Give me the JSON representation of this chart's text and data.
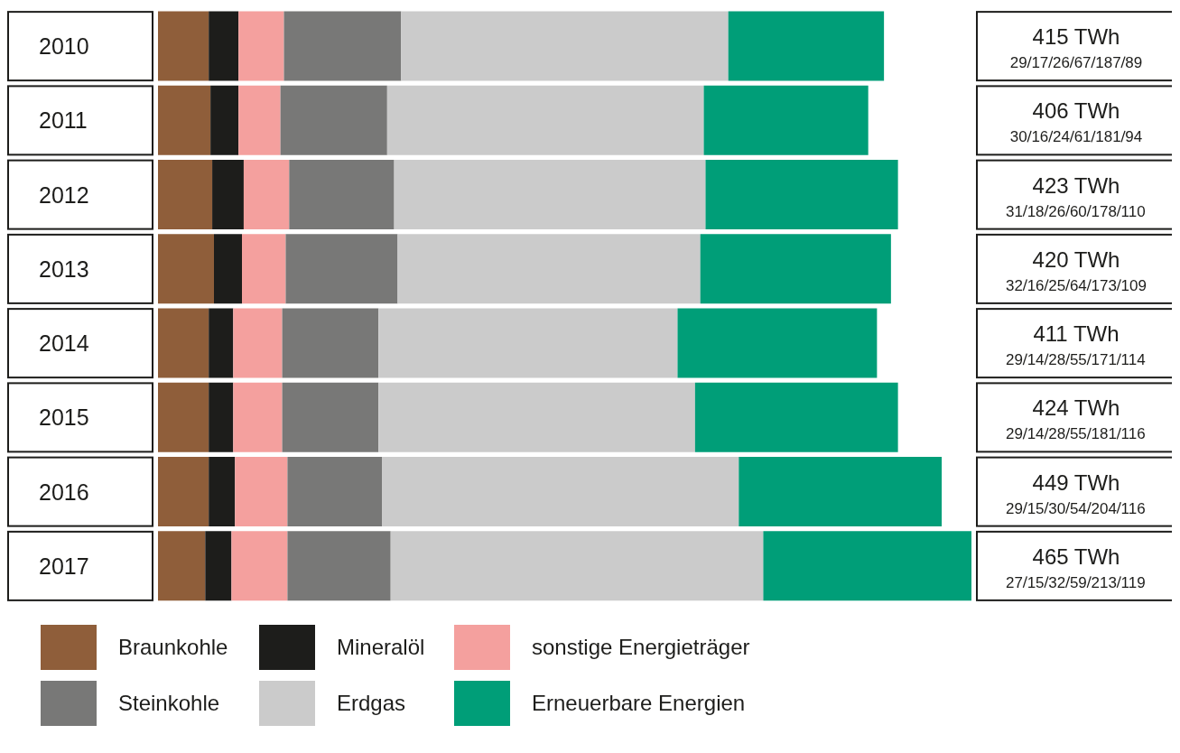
{
  "chart_data": {
    "type": "bar",
    "orientation": "horizontal",
    "stacked": true,
    "categories": [
      "2010",
      "2011",
      "2012",
      "2013",
      "2014",
      "2015",
      "2016",
      "2017"
    ],
    "series": [
      {
        "name": "Braunkohle",
        "color": "#8f5e3a",
        "values": [
          29,
          30,
          31,
          32,
          29,
          29,
          29,
          27
        ]
      },
      {
        "name": "Mineralöl",
        "color": "#1d1d1b",
        "values": [
          17,
          16,
          18,
          16,
          14,
          14,
          15,
          15
        ]
      },
      {
        "name": "sonstige Energieträger",
        "color": "#f4a09e",
        "values": [
          26,
          24,
          26,
          25,
          28,
          28,
          30,
          32
        ]
      },
      {
        "name": "Steinkohle",
        "color": "#787877",
        "values": [
          67,
          61,
          60,
          64,
          55,
          55,
          54,
          59
        ]
      },
      {
        "name": "Erdgas",
        "color": "#cbcbcb",
        "values": [
          187,
          181,
          178,
          173,
          171,
          181,
          204,
          213
        ]
      },
      {
        "name": "Erneuerbare Energien",
        "color": "#009e78",
        "values": [
          89,
          94,
          110,
          109,
          114,
          116,
          116,
          119
        ]
      }
    ],
    "data_labels": true,
    "annotations": [
      "415 TWh",
      "406 TWh",
      "423 TWh",
      "420 TWh",
      "411 TWh",
      "424 TWh",
      "449 TWh",
      "465 TWh"
    ],
    "legend": "bottom"
  }
}
